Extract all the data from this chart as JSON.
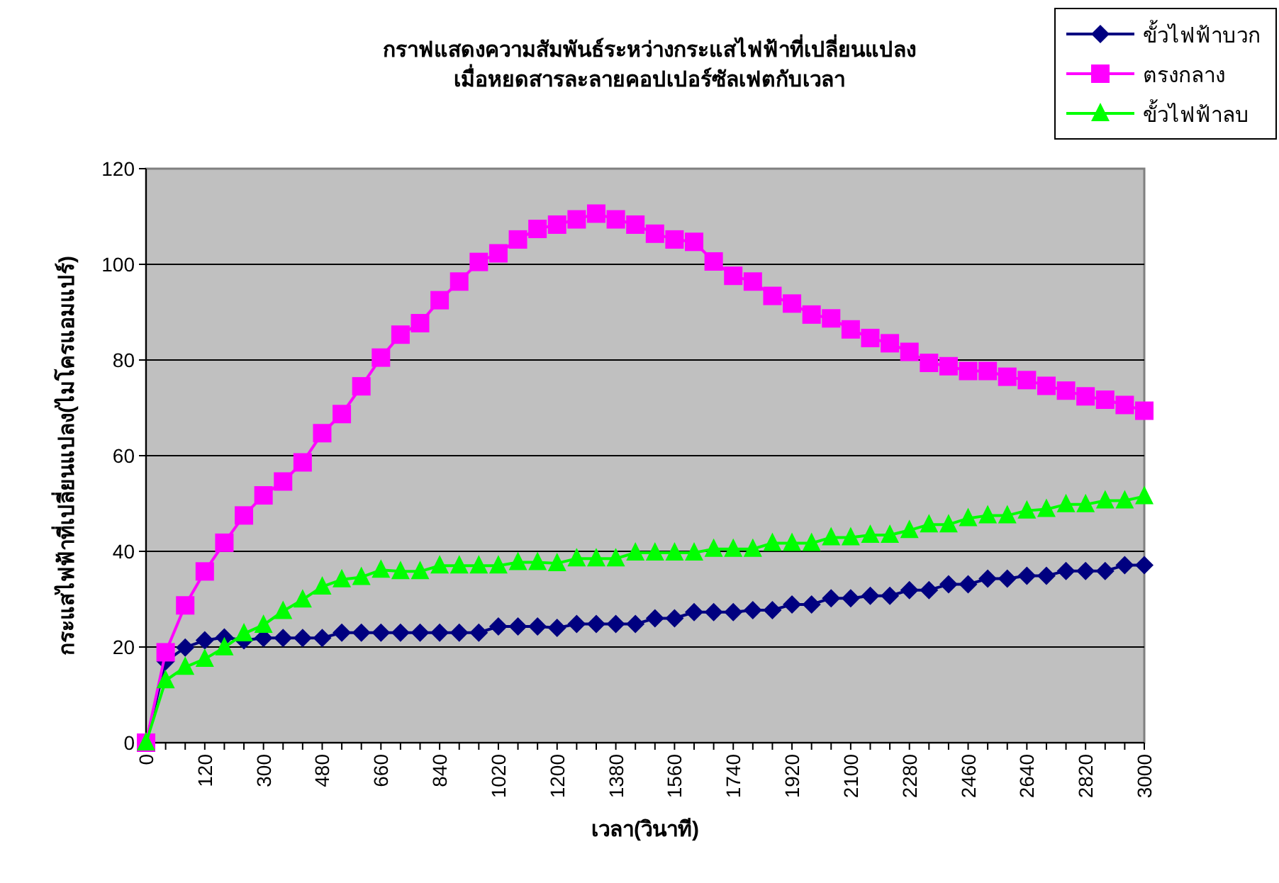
{
  "chart_data": {
    "type": "line",
    "title": "กราฟแสดงความสัมพันธ์ระหว่างกระแสไฟฟ้าที่เปลี่ยนแปลง\nเมื่อหยดสารละลายคอปเปอร์ซัลเฟตกับเวลา",
    "xlabel": "เวลา(วินาที)",
    "ylabel": "กระแสไฟฟ้าที่เปลี่ยนแปลง(ไมโครแอมแปร์)",
    "categories": [
      "0",
      null,
      null,
      "120",
      null,
      null,
      "300",
      null,
      null,
      "480",
      null,
      null,
      "660",
      null,
      null,
      "840",
      null,
      null,
      "1020",
      null,
      null,
      "1200",
      null,
      null,
      "1380",
      null,
      null,
      "1560",
      null,
      null,
      "1740",
      null,
      null,
      "1920",
      null,
      null,
      "2100",
      null,
      null,
      "2280",
      null,
      null,
      "2460",
      null,
      null,
      "2640",
      null,
      null,
      "2820",
      null,
      null,
      "3000"
    ],
    "series": [
      {
        "name": "ขั้วไฟฟ้าบวก",
        "color": "#000080",
        "marker": "diamond",
        "values": [
          0,
          17,
          19.9,
          21.4,
          22,
          21.4,
          21.9,
          21.9,
          21.9,
          21.9,
          23,
          23,
          23,
          23,
          23,
          23,
          23,
          23,
          24.3,
          24.3,
          24.3,
          24,
          24.8,
          24.8,
          24.8,
          24.8,
          26,
          26,
          27.3,
          27.3,
          27.3,
          27.7,
          27.7,
          28.9,
          28.9,
          30.2,
          30.2,
          30.7,
          30.7,
          31.9,
          31.9,
          33.1,
          33.1,
          34.3,
          34.3,
          34.9,
          34.9,
          35.9,
          35.9,
          35.9,
          37.1,
          37.1
        ]
      },
      {
        "name": "ตรงกลาง",
        "color": "#ff00ff",
        "marker": "square",
        "values": [
          0,
          18.9,
          28.7,
          35.8,
          41.8,
          47.5,
          51.7,
          54.6,
          58.6,
          64.7,
          68.7,
          74.5,
          80.5,
          85.3,
          87.7,
          92.5,
          96.4,
          100.5,
          102.3,
          105.2,
          107.4,
          108.3,
          109.4,
          110.6,
          109.4,
          108.3,
          106.4,
          105.2,
          104.7,
          100.6,
          97.6,
          96.4,
          93.4,
          91.8,
          89.5,
          88.7,
          86.4,
          84.6,
          83.5,
          81.7,
          79.4,
          78.7,
          77.7,
          77.7,
          76.5,
          75.8,
          74.6,
          73.6,
          72.4,
          71.7,
          70.6,
          69.4
        ]
      },
      {
        "name": "ขั้วไฟฟ้าลบ",
        "color": "#00ff00",
        "marker": "triangle",
        "values": [
          0,
          13,
          15.8,
          17.5,
          19.9,
          22.8,
          24.6,
          27.5,
          29.9,
          32.6,
          34.1,
          34.6,
          36.1,
          35.8,
          35.8,
          37,
          37,
          37,
          37,
          37.7,
          37.7,
          37.5,
          38.5,
          38.5,
          38.5,
          39.7,
          39.7,
          39.7,
          39.7,
          40.5,
          40.5,
          40.5,
          41.7,
          41.7,
          41.7,
          42.9,
          42.9,
          43.4,
          43.4,
          44.4,
          45.6,
          45.6,
          46.9,
          47.5,
          47.5,
          48.5,
          48.8,
          49.8,
          49.8,
          50.6,
          50.6,
          51.5
        ]
      }
    ],
    "ylim": [
      0,
      120
    ],
    "yticks": [
      0,
      20,
      40,
      60,
      80,
      100,
      120
    ],
    "grid": "y",
    "legend": "top right",
    "line_style": "solid"
  }
}
